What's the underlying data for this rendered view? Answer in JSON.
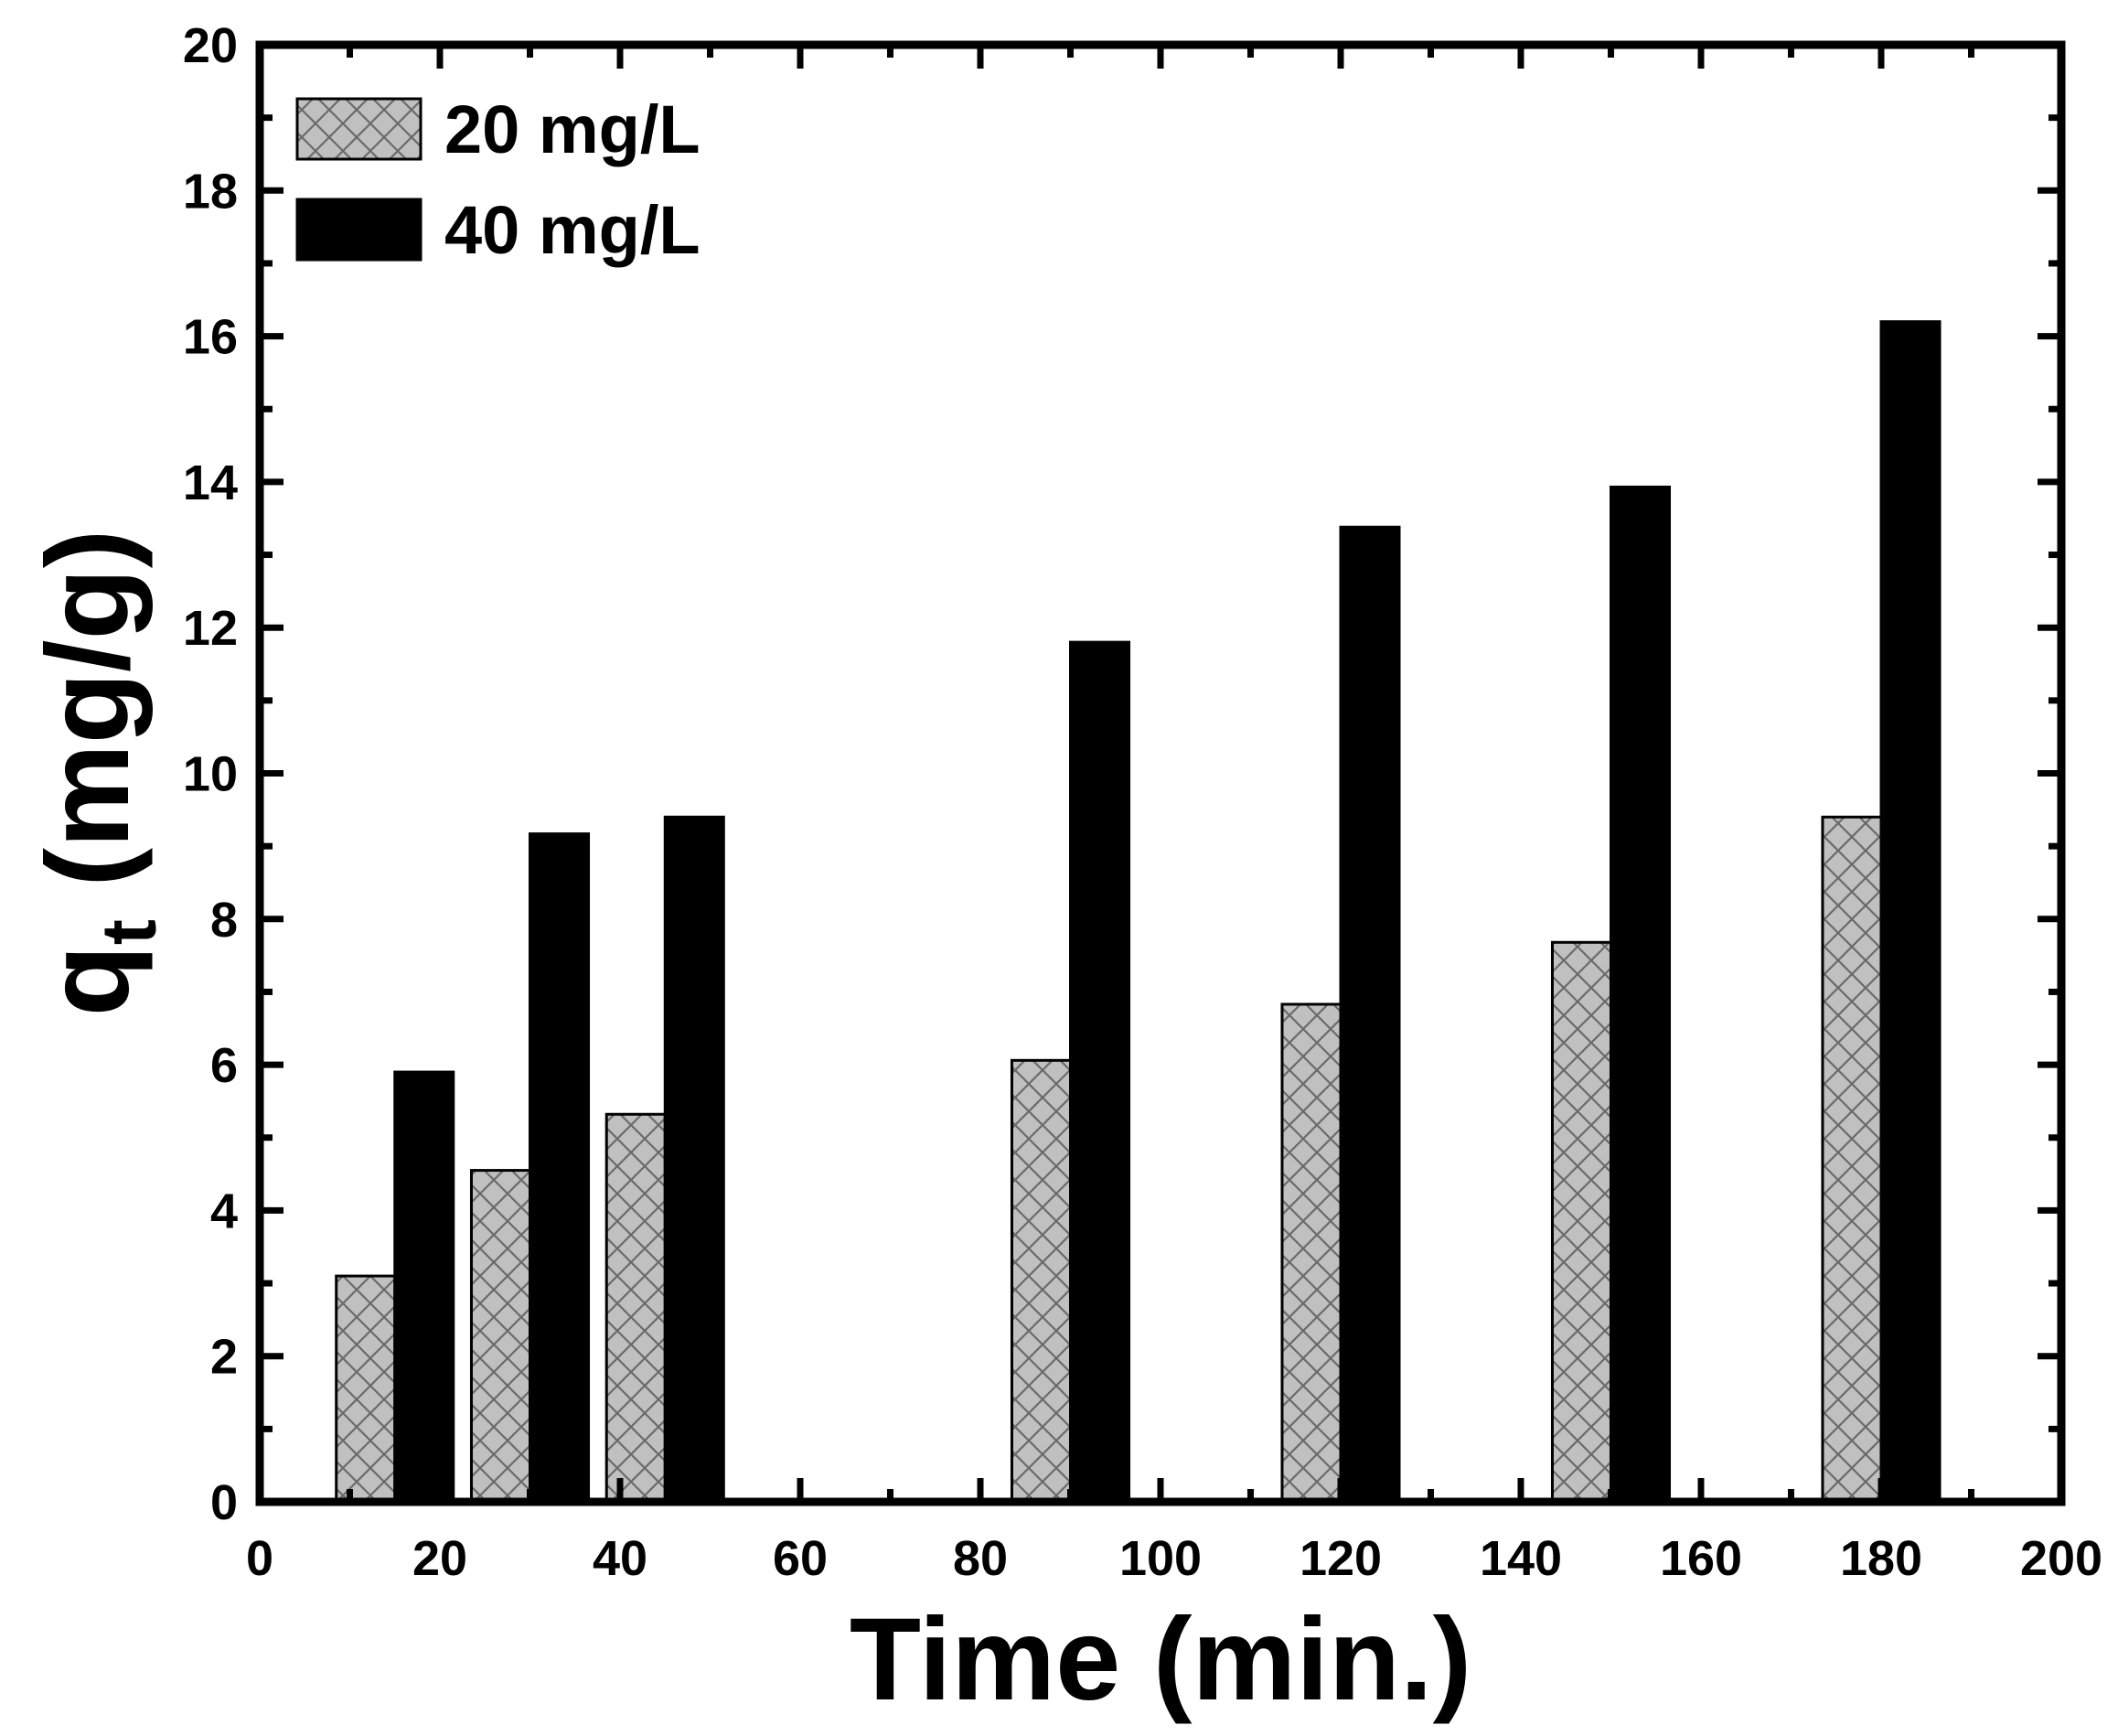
{
  "chart_data": {
    "type": "bar",
    "title": "",
    "xlabel": "Time (min.)",
    "ylabel_main": "q",
    "ylabel_sub": "t",
    "ylabel_unit": "(mg/g)",
    "xlim": [
      0,
      200
    ],
    "ylim": [
      0,
      20
    ],
    "x_ticks": [
      0,
      20,
      40,
      60,
      80,
      100,
      120,
      140,
      160,
      180,
      200
    ],
    "x_tick_labels": [
      "0",
      "20",
      "40",
      "60",
      "80",
      "100",
      "120",
      "140",
      "160",
      "180",
      "200"
    ],
    "y_ticks": [
      0,
      2,
      4,
      6,
      8,
      10,
      12,
      14,
      16,
      18,
      20
    ],
    "y_tick_labels": [
      "0",
      "2",
      "4",
      "6",
      "8",
      "10",
      "12",
      "14",
      "16",
      "18",
      "20"
    ],
    "x_minor_step": 10,
    "y_minor_step": 1,
    "x": [
      15,
      30,
      45,
      90,
      120,
      150,
      180
    ],
    "bar_width": 6.5,
    "legend_position": "top-left",
    "series": [
      {
        "name": "20 mg/L",
        "pattern": "crosshatch",
        "fill": "#c0c0c0",
        "values": [
          3.1,
          4.55,
          5.32,
          6.06,
          6.83,
          7.68,
          9.4
        ]
      },
      {
        "name": "40 mg/L",
        "pattern": "solid",
        "fill": "#000000",
        "values": [
          5.9,
          9.17,
          9.4,
          11.8,
          13.38,
          13.93,
          16.2
        ]
      }
    ]
  }
}
